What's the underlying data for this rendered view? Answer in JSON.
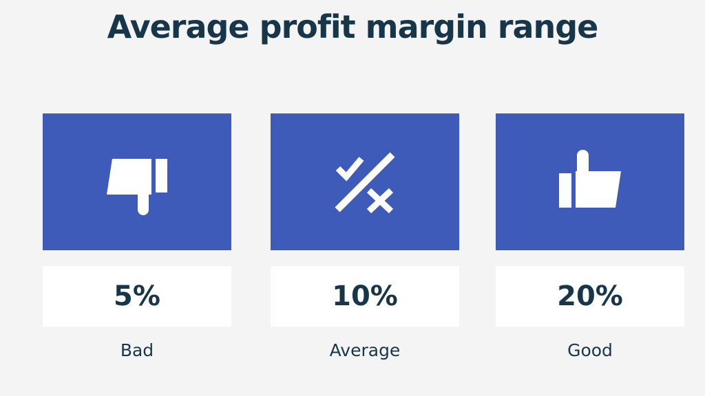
{
  "title": "Average profit margin range",
  "cards": [
    {
      "value": "5%",
      "label": "Bad"
    },
    {
      "value": "10%",
      "label": "Average"
    },
    {
      "value": "20%",
      "label": "Good"
    }
  ]
}
